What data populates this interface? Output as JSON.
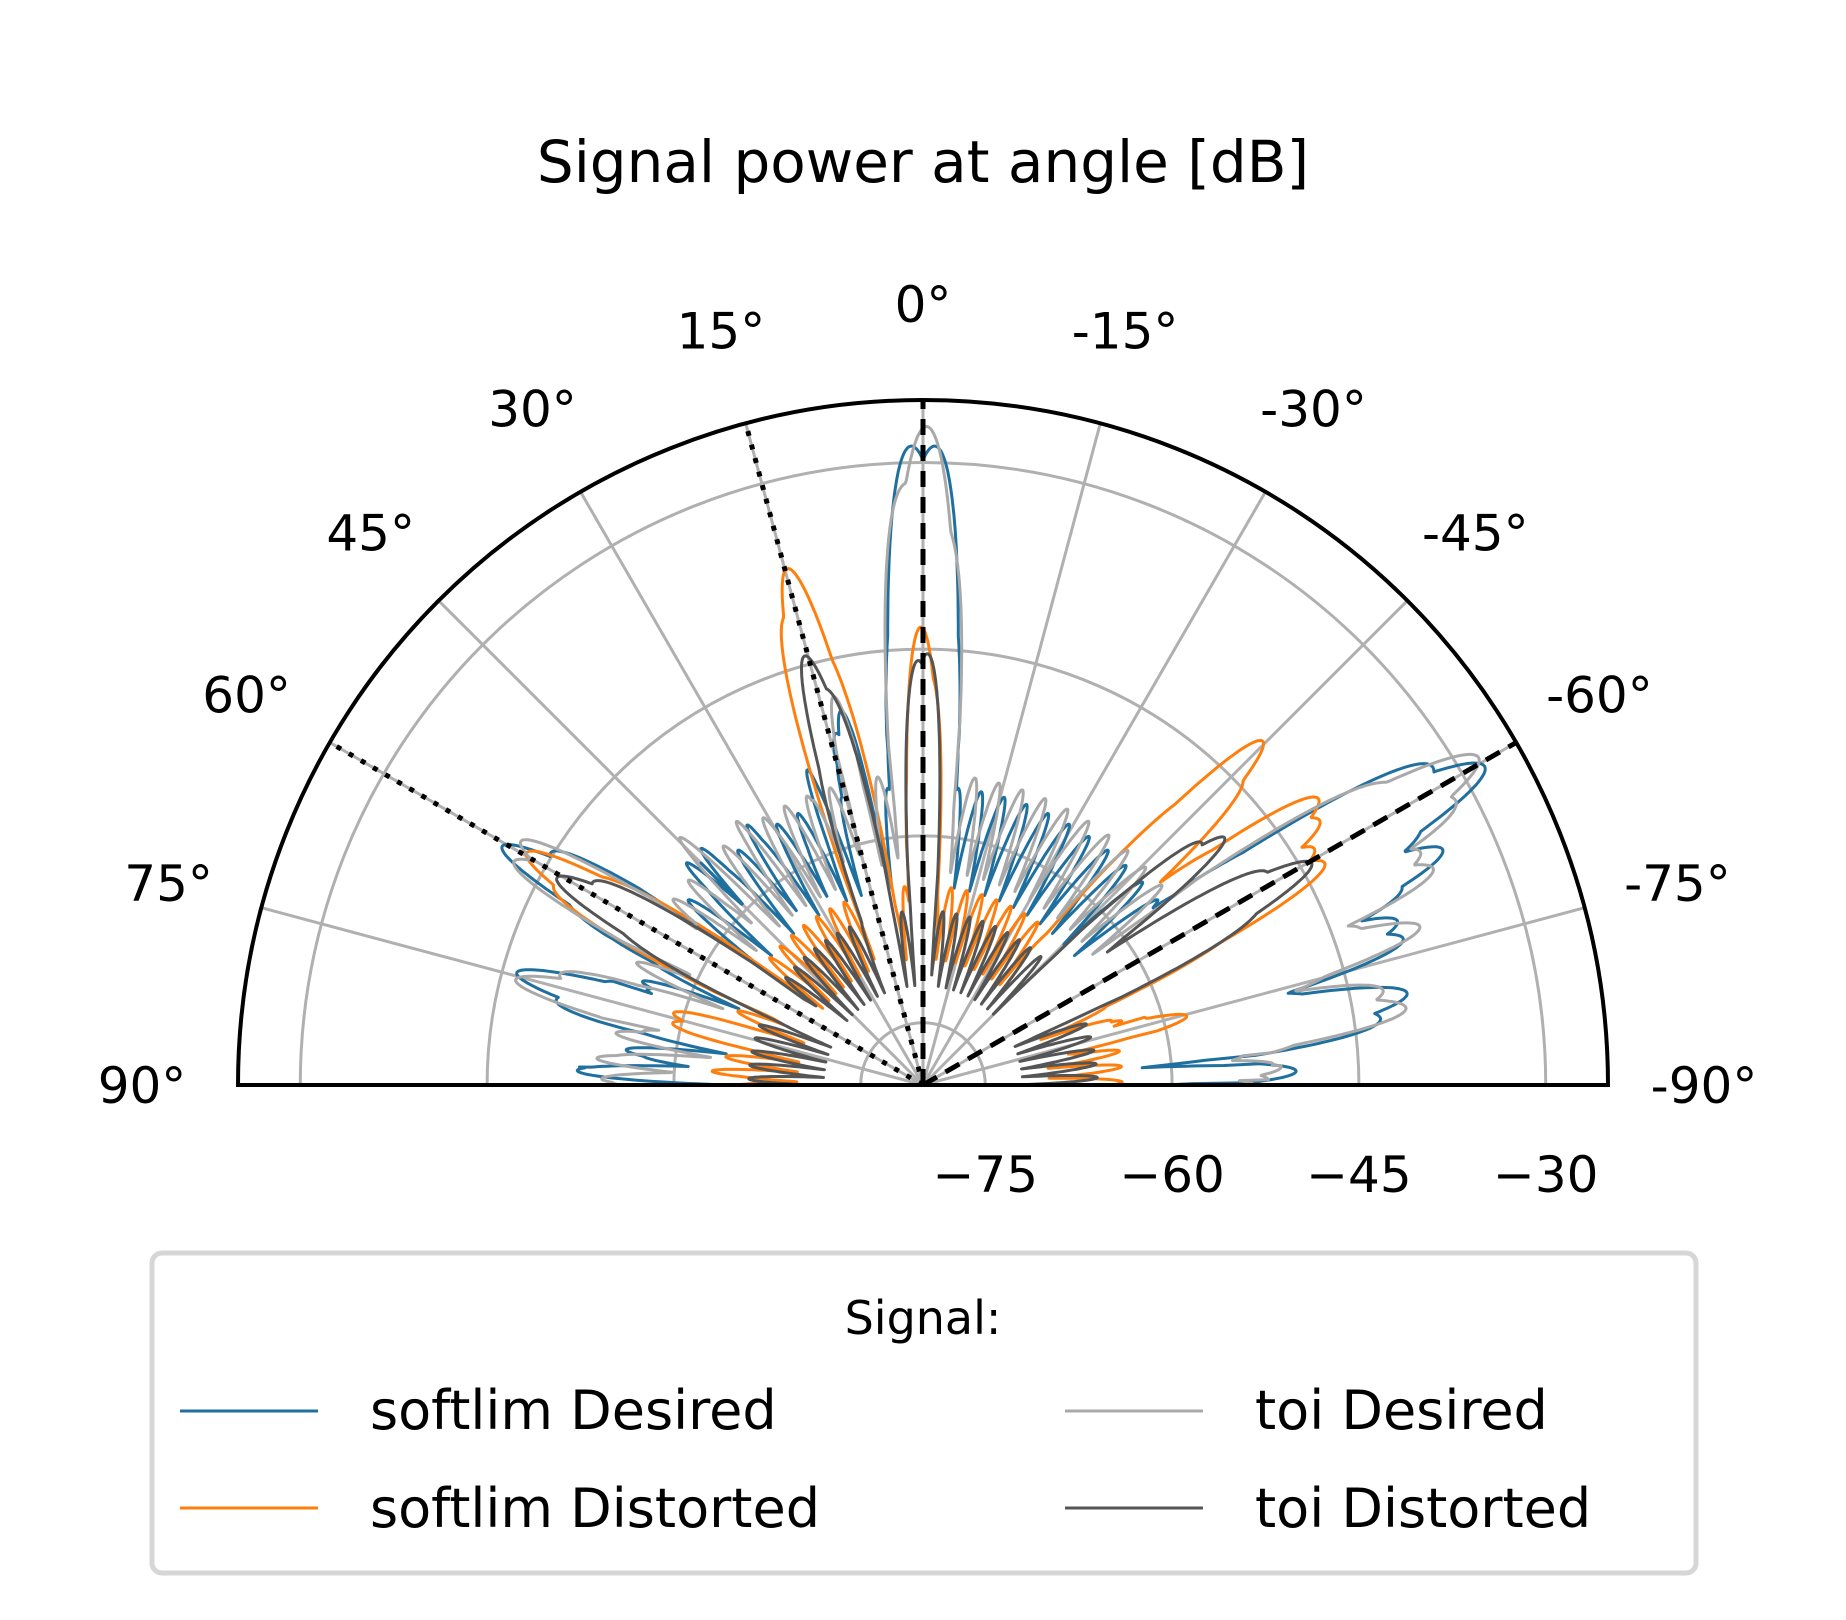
{
  "chart_data": {
    "type": "line",
    "subtype": "polar-half",
    "title": "Signal power at angle [dB]",
    "theta_ticks": [
      {
        "deg": 90,
        "label": "90°"
      },
      {
        "deg": 75,
        "label": "75°"
      },
      {
        "deg": 60,
        "label": "60°"
      },
      {
        "deg": 45,
        "label": "45°"
      },
      {
        "deg": 30,
        "label": "30°"
      },
      {
        "deg": 15,
        "label": "15°"
      },
      {
        "deg": 0,
        "label": "0°"
      },
      {
        "deg": -15,
        "label": "-15°"
      },
      {
        "deg": -30,
        "label": "-30°"
      },
      {
        "deg": -45,
        "label": "-45°"
      },
      {
        "deg": -60,
        "label": "-60°"
      },
      {
        "deg": -75,
        "label": "-75°"
      },
      {
        "deg": -90,
        "label": "-90°"
      }
    ],
    "r_ticks": [
      {
        "value": -75,
        "label": "−75"
      },
      {
        "value": -60,
        "label": "−60"
      },
      {
        "value": -45,
        "label": "−45"
      },
      {
        "value": -30,
        "label": "−30"
      }
    ],
    "r_range": [
      -80,
      -25
    ],
    "theta_range": [
      -90,
      90
    ],
    "grid": true,
    "direction_lines": [
      {
        "style": "dashed",
        "theta": 0
      },
      {
        "style": "dashed",
        "theta": -60
      },
      {
        "style": "dotted",
        "theta": 15
      },
      {
        "style": "dotted",
        "theta": 60
      }
    ],
    "series": [
      {
        "name": "softlim Desired",
        "color": "#1f6f9f",
        "lobes": [
          [
            0,
            -27,
            2.5
          ],
          [
            -60,
            -28,
            3
          ],
          [
            -66,
            -34,
            2.5
          ],
          [
            -72,
            -38,
            2.5
          ],
          [
            -80,
            -40,
            3
          ],
          [
            -88,
            -50,
            2.5
          ],
          [
            13,
            -48,
            2
          ],
          [
            20,
            -53,
            2
          ],
          [
            27,
            -55,
            2
          ],
          [
            35,
            -54,
            2.5
          ],
          [
            45,
            -52,
            3
          ],
          [
            60,
            -41,
            3
          ],
          [
            75,
            -46,
            3
          ],
          [
            87,
            -52,
            3
          ]
        ],
        "floor": -56,
        "ripple": 8
      },
      {
        "name": "softlim Distorted",
        "color": "#ff7f0e",
        "lobes": [
          [
            0,
            -43,
            2
          ],
          [
            15,
            -37,
            2.5
          ],
          [
            -45,
            -41,
            2.5
          ],
          [
            -55,
            -40,
            3
          ],
          [
            -60,
            -42,
            3
          ],
          [
            -75,
            -58,
            3
          ],
          [
            60,
            -43,
            3
          ],
          [
            75,
            -58,
            3
          ],
          [
            86,
            -63,
            3
          ]
        ],
        "floor": -64,
        "ripple": 6
      },
      {
        "name": "toi Desired",
        "color": "#a9a9a9",
        "lobes": [
          [
            0,
            -27,
            2.5
          ],
          [
            -60,
            -28,
            3
          ],
          [
            -66,
            -34,
            2.5
          ],
          [
            -72,
            -38,
            2.5
          ],
          [
            -80,
            -40,
            3
          ],
          [
            -88,
            -50,
            2.5
          ],
          [
            13,
            -48,
            2
          ],
          [
            20,
            -53,
            2
          ],
          [
            27,
            -55,
            2
          ],
          [
            35,
            -54,
            2.5
          ],
          [
            45,
            -52,
            3
          ],
          [
            60,
            -41,
            3
          ],
          [
            75,
            -46,
            3
          ],
          [
            87,
            -52,
            3
          ]
        ],
        "floor": -55,
        "ripple": 8
      },
      {
        "name": "toi Distorted",
        "color": "#555555",
        "lobes": [
          [
            0,
            -44,
            2
          ],
          [
            15,
            -44,
            2.5
          ],
          [
            -50,
            -48,
            2.5
          ],
          [
            -60,
            -44,
            3
          ],
          [
            60,
            -46,
            3
          ],
          [
            -80,
            -68,
            3
          ],
          [
            80,
            -66,
            3
          ]
        ],
        "floor": -66,
        "ripple": 6
      }
    ],
    "legend": {
      "title": "Signal:",
      "position": "below",
      "entries": [
        {
          "label": "softlim Desired",
          "color": "#1f6f9f"
        },
        {
          "label": "toi Desired",
          "color": "#a9a9a9"
        },
        {
          "label": "softlim Distorted",
          "color": "#ff7f0e"
        },
        {
          "label": "toi Distorted",
          "color": "#555555"
        }
      ]
    }
  }
}
